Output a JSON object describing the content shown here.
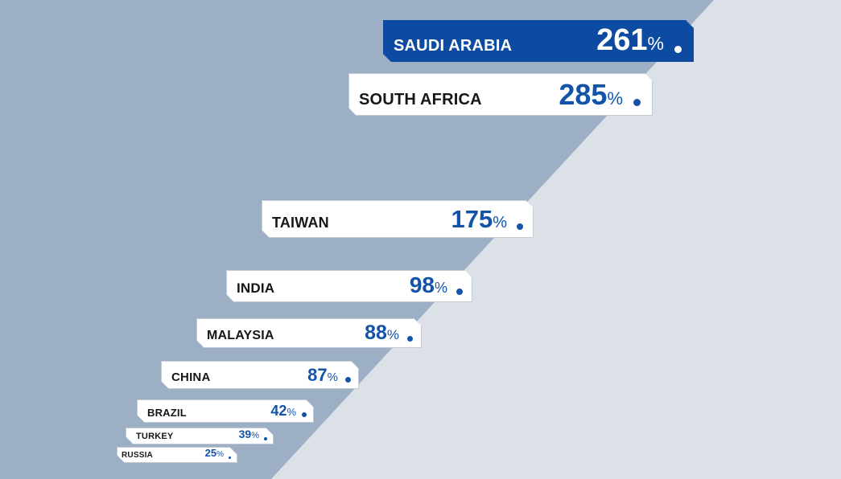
{
  "colors": {
    "panel_dark": "#9cafc5",
    "panel_light": "#dce1e8",
    "bar_fill": "#ffffff",
    "highlight_fill": "#0d4ba3",
    "value_text": "#1354a8",
    "label_text": "#161616"
  },
  "chart_data": {
    "type": "bar",
    "orientation": "horizontal",
    "percent_symbol": "%",
    "highlighted": "SAUDI ARABIA",
    "categories": [
      "SAUDI ARABIA",
      "SOUTH AFRICA",
      "TAIWAN",
      "INDIA",
      "MALAYSIA",
      "CHINA",
      "BRAZIL",
      "TURKEY",
      "RUSSIA"
    ],
    "values": [
      261,
      285,
      175,
      98,
      88,
      87,
      42,
      39,
      25
    ],
    "unit": "%"
  }
}
